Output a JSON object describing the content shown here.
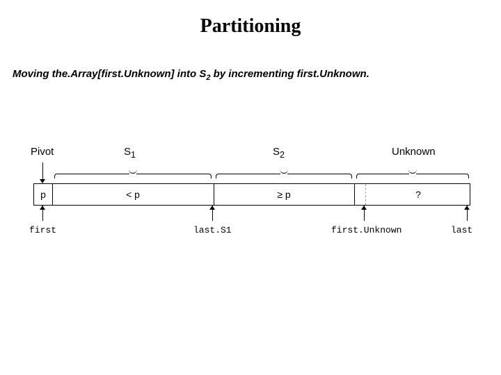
{
  "title": "Partitioning",
  "subtitle_pre": "Moving the.Array[first.Unknown] into S",
  "subtitle_sub": "2",
  "subtitle_post": " by incrementing first.Unknown.",
  "layout": {
    "total_width": 628,
    "pivot_width": 26,
    "s1_end": 258,
    "s2_end": 460,
    "dashed_at": 476
  },
  "top": {
    "pivot": "Pivot",
    "s1_html": "S<sub>1</sub>",
    "s2_html": "S<sub>2</sub>",
    "unknown": "Unknown"
  },
  "cells": {
    "pivot": "p",
    "s1": "< p",
    "s2": "≥ p",
    "unknown": "?"
  },
  "bottom": {
    "first": "first",
    "lastS1": "last.S1",
    "firstUnknown": "first.Unknown",
    "last": "last"
  },
  "colors": {
    "bg": "#ffffff",
    "line": "#000000",
    "dashed": "#999999"
  }
}
